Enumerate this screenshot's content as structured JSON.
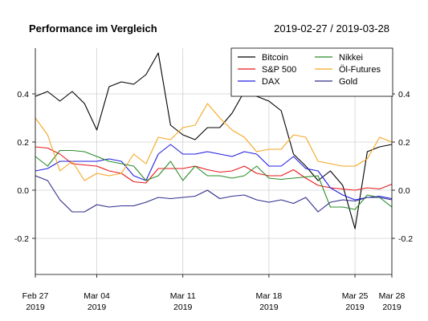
{
  "chart_data": {
    "type": "line",
    "title": "Performance im Vergleich",
    "date_range": "2019-02-27 / 2019-03-28",
    "y_ticks": [
      -0.2,
      0.0,
      0.2,
      0.4
    ],
    "y_tick_labels": [
      "-0.2",
      "0.0",
      "0.2",
      "0.4"
    ],
    "ylim": [
      -0.35,
      0.59
    ],
    "xlim": [
      "2019-02-27",
      "2019-03-28"
    ],
    "x_tick_labels": [
      {
        "date": "2019-02-27",
        "line1": "Feb 27",
        "line2": "2019"
      },
      {
        "date": "2019-03-04",
        "line1": "Mar 04",
        "line2": "2019"
      },
      {
        "date": "2019-03-11",
        "line1": "Mar 11",
        "line2": "2019"
      },
      {
        "date": "2019-03-18",
        "line1": "Mar 18",
        "line2": "2019"
      },
      {
        "date": "2019-03-25",
        "line1": "Mar 25",
        "line2": "2019"
      },
      {
        "date": "2019-03-28",
        "line1": "Mar 28",
        "line2": "2019"
      }
    ],
    "grid": true,
    "legend": {
      "position": "top-right",
      "columns": 2
    },
    "x": [
      "2019-02-27",
      "2019-02-28",
      "2019-03-01",
      "2019-03-02",
      "2019-03-03",
      "2019-03-04",
      "2019-03-05",
      "2019-03-06",
      "2019-03-07",
      "2019-03-08",
      "2019-03-09",
      "2019-03-10",
      "2019-03-11",
      "2019-03-12",
      "2019-03-13",
      "2019-03-14",
      "2019-03-15",
      "2019-03-16",
      "2019-03-17",
      "2019-03-18",
      "2019-03-19",
      "2019-03-20",
      "2019-03-21",
      "2019-03-22",
      "2019-03-23",
      "2019-03-24",
      "2019-03-25",
      "2019-03-26",
      "2019-03-27",
      "2019-03-28"
    ],
    "series": [
      {
        "name": "Bitcoin",
        "color": "#000000",
        "values": [
          0.39,
          0.41,
          0.37,
          0.41,
          0.36,
          0.25,
          0.43,
          0.45,
          0.44,
          0.48,
          0.57,
          0.27,
          0.23,
          0.21,
          0.26,
          0.26,
          0.32,
          0.41,
          0.39,
          0.37,
          0.33,
          0.15,
          0.1,
          0.04,
          0.08,
          0.02,
          -0.16,
          0.16,
          0.18,
          0.19
        ]
      },
      {
        "name": "S&P 500",
        "color": "#e8191c",
        "values": [
          0.18,
          0.175,
          0.15,
          0.11,
          0.105,
          0.1,
          0.08,
          0.07,
          0.035,
          0.03,
          0.09,
          0.09,
          0.09,
          0.1,
          0.085,
          0.075,
          0.08,
          0.1,
          0.07,
          0.06,
          0.06,
          0.085,
          0.05,
          0.02,
          0.01,
          0.005,
          0.0,
          0.01,
          0.005,
          0.025
        ]
      },
      {
        "name": "DAX",
        "color": "#2020e0",
        "values": [
          0.08,
          0.09,
          0.12,
          0.12,
          0.12,
          0.12,
          0.13,
          0.12,
          0.06,
          0.04,
          0.15,
          0.19,
          0.15,
          0.15,
          0.16,
          0.15,
          0.14,
          0.16,
          0.15,
          0.1,
          0.1,
          0.14,
          0.09,
          0.08,
          0.01,
          -0.02,
          -0.04,
          -0.03,
          -0.025,
          -0.035
        ]
      },
      {
        "name": "Nikkei",
        "color": "#2a8c2a",
        "values": [
          0.14,
          0.1,
          0.165,
          0.165,
          0.16,
          0.14,
          0.12,
          0.11,
          0.1,
          0.04,
          0.06,
          0.12,
          0.04,
          0.1,
          0.06,
          0.06,
          0.05,
          0.06,
          0.1,
          0.05,
          0.045,
          0.05,
          0.055,
          0.06,
          -0.07,
          -0.07,
          -0.08,
          -0.02,
          -0.03,
          -0.07
        ]
      },
      {
        "name": "Öl-Futures",
        "color": "#f5a623",
        "values": [
          0.3,
          0.23,
          0.08,
          0.12,
          0.04,
          0.07,
          0.06,
          0.07,
          0.15,
          0.11,
          0.22,
          0.21,
          0.26,
          0.27,
          0.36,
          0.3,
          0.25,
          0.22,
          0.16,
          0.17,
          0.17,
          0.23,
          0.22,
          0.12,
          0.11,
          0.1,
          0.1,
          0.13,
          0.22,
          0.2
        ]
      },
      {
        "name": "Gold",
        "color": "#2d2d8c",
        "values": [
          0.06,
          0.04,
          -0.04,
          -0.09,
          -0.09,
          -0.06,
          -0.07,
          -0.065,
          -0.065,
          -0.05,
          -0.03,
          -0.035,
          -0.03,
          -0.025,
          0.0,
          -0.035,
          -0.025,
          -0.02,
          -0.04,
          -0.05,
          -0.04,
          -0.055,
          -0.03,
          -0.09,
          -0.05,
          -0.04,
          -0.045,
          -0.03,
          -0.03,
          -0.04
        ]
      }
    ]
  }
}
